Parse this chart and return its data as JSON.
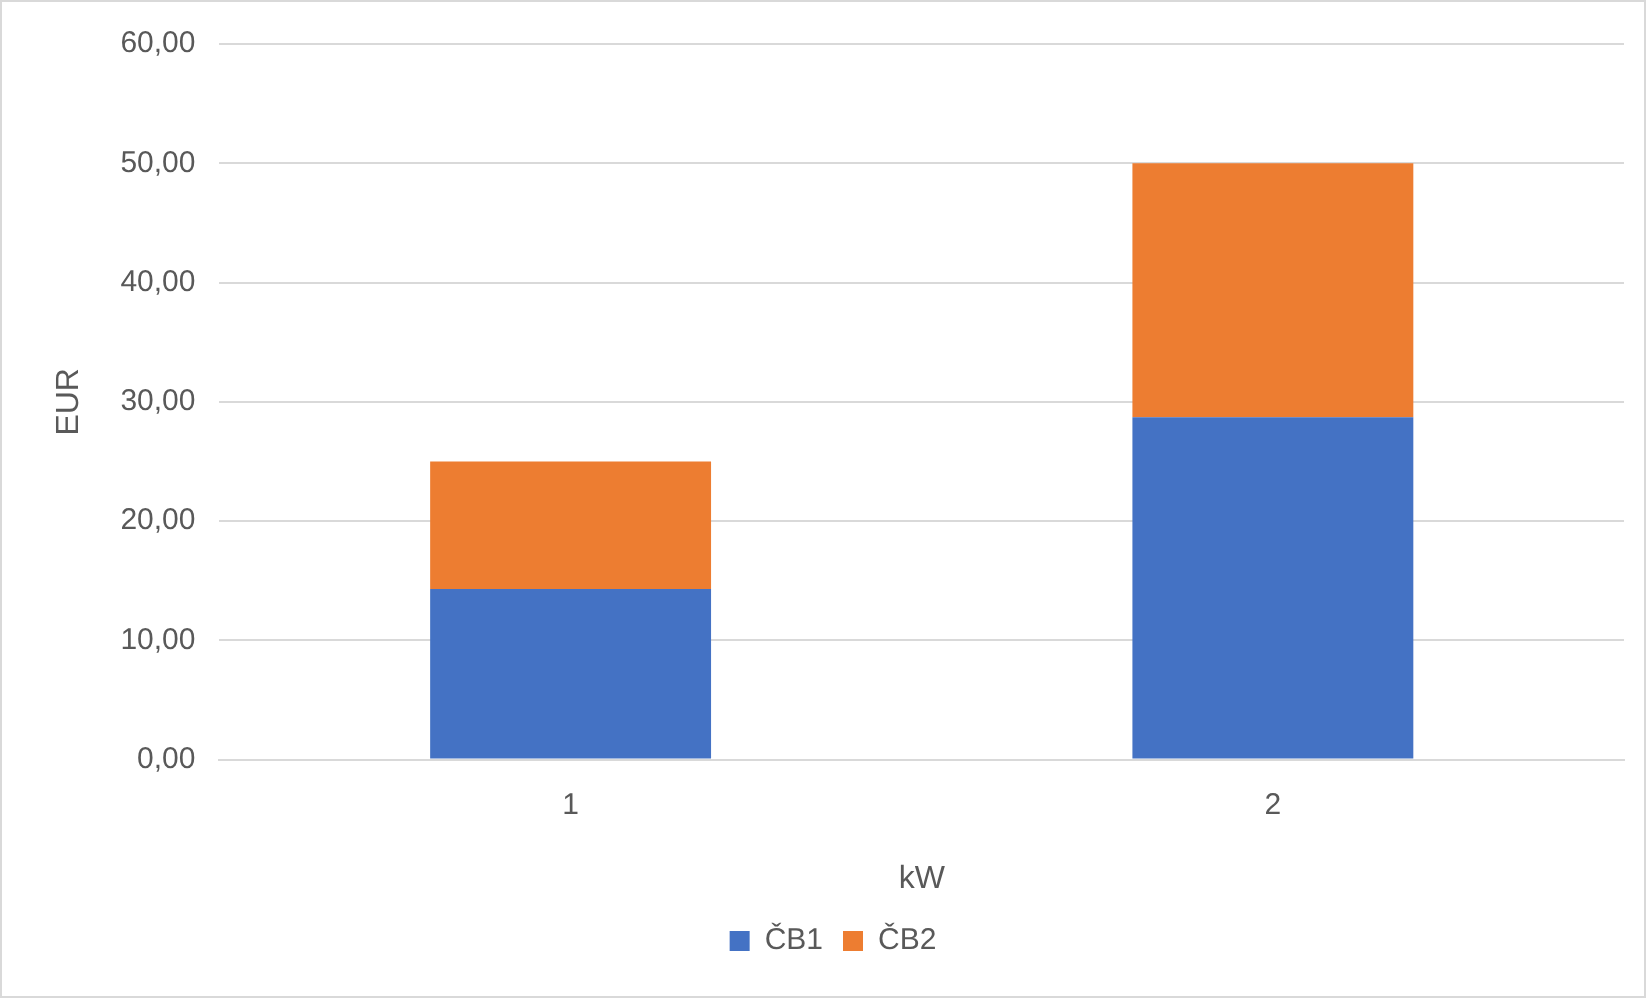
{
  "chart_data": {
    "type": "bar",
    "stacked": true,
    "xlabel": "kW",
    "ylabel": "EUR",
    "categories": [
      "1",
      "2"
    ],
    "series": [
      {
        "name": "ČB1",
        "color": "#4472c4",
        "values": [
          14.3,
          28.7
        ]
      },
      {
        "name": "ČB2",
        "color": "#ed7d31",
        "values": [
          10.7,
          21.3
        ]
      }
    ],
    "ylim": [
      0,
      60
    ],
    "yticks": [
      {
        "value": 0,
        "label": "0,00"
      },
      {
        "value": 10,
        "label": "10,00"
      },
      {
        "value": 20,
        "label": "20,00"
      },
      {
        "value": 30,
        "label": "30,00"
      },
      {
        "value": 40,
        "label": "40,00"
      },
      {
        "value": 50,
        "label": "50,00"
      },
      {
        "value": 60,
        "label": "60,00"
      }
    ],
    "grid": "y",
    "legend": "bottom"
  }
}
